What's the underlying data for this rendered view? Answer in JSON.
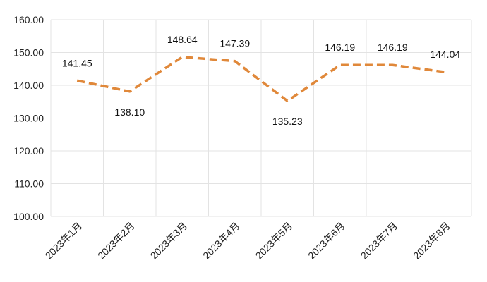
{
  "chart_data": {
    "type": "line",
    "categories": [
      "2023年1月",
      "2023年2月",
      "2023年3月",
      "2023年4月",
      "2023年5月",
      "2023年6月",
      "2023年7月",
      "2023年8月"
    ],
    "series": [
      {
        "values": [
          141.45,
          138.1,
          148.64,
          147.39,
          135.23,
          146.19,
          146.19,
          144.04
        ],
        "labels": [
          "141.45",
          "138.10",
          "148.64",
          "147.39",
          "135.23",
          "146.19",
          "146.19",
          "144.04"
        ],
        "color": "#e0883a",
        "line_style": "dashed"
      }
    ],
    "y_ticks": [
      "100.00",
      "110.00",
      "120.00",
      "130.00",
      "140.00",
      "150.00",
      "160.00"
    ],
    "ylim": [
      100,
      160
    ],
    "grid": true,
    "legend": "none"
  }
}
